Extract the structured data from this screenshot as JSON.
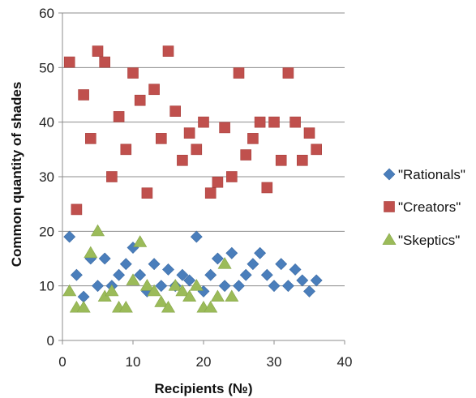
{
  "chart_data": {
    "type": "scatter",
    "title": "",
    "xlabel": "Recipients (№)",
    "ylabel": "Common quantity of shades",
    "xlim": [
      0,
      40
    ],
    "ylim": [
      0,
      60
    ],
    "xticks": [
      "0",
      "10",
      "20",
      "30",
      "40"
    ],
    "yticks": [
      "0",
      "10",
      "20",
      "30",
      "40",
      "50",
      "60"
    ],
    "grid": "horizontal",
    "legend_position": "right",
    "series": [
      {
        "name": "\"Rationals\"",
        "marker": "diamond",
        "color": "#4a7ebb",
        "x": [
          1,
          2,
          3,
          4,
          5,
          6,
          7,
          8,
          9,
          10,
          11,
          12,
          13,
          14,
          15,
          16,
          17,
          18,
          19,
          20,
          21,
          22,
          23,
          24,
          25,
          26,
          27,
          28,
          29,
          30,
          31,
          32,
          33,
          34,
          35,
          36
        ],
        "y": [
          19,
          12,
          8,
          15,
          10,
          15,
          10,
          12,
          14,
          17,
          12,
          9,
          14,
          10,
          13,
          10,
          12,
          11,
          19,
          9,
          12,
          15,
          10,
          16,
          10,
          12,
          14,
          16,
          12,
          10,
          14,
          10,
          13,
          11,
          9,
          11
        ]
      },
      {
        "name": "\"Creators\"",
        "marker": "square",
        "color": "#c0504d",
        "x": [
          1,
          2,
          3,
          4,
          5,
          6,
          7,
          8,
          9,
          10,
          11,
          12,
          13,
          14,
          15,
          16,
          17,
          18,
          19,
          20,
          21,
          22,
          23,
          24,
          25,
          26,
          27,
          28,
          29,
          30,
          31,
          32,
          33,
          34,
          35,
          36
        ],
        "y": [
          51,
          24,
          45,
          37,
          53,
          51,
          30,
          41,
          35,
          49,
          44,
          27,
          46,
          37,
          53,
          42,
          33,
          38,
          35,
          40,
          27,
          29,
          39,
          30,
          49,
          34,
          37,
          40,
          28,
          40,
          33,
          49,
          40,
          33,
          38,
          35
        ]
      },
      {
        "name": "\"Skeptics\"",
        "marker": "triangle",
        "color": "#9bbb59",
        "x": [
          1,
          2,
          3,
          4,
          5,
          6,
          7,
          8,
          9,
          10,
          11,
          12,
          13,
          14,
          15,
          16,
          17,
          18,
          19,
          20,
          21,
          22,
          23,
          24
        ],
        "y": [
          9,
          6,
          6,
          16,
          20,
          8,
          9,
          6,
          6,
          11,
          18,
          10,
          9,
          7,
          6,
          10,
          9,
          8,
          10,
          6,
          6,
          8,
          14,
          8
        ]
      }
    ]
  }
}
